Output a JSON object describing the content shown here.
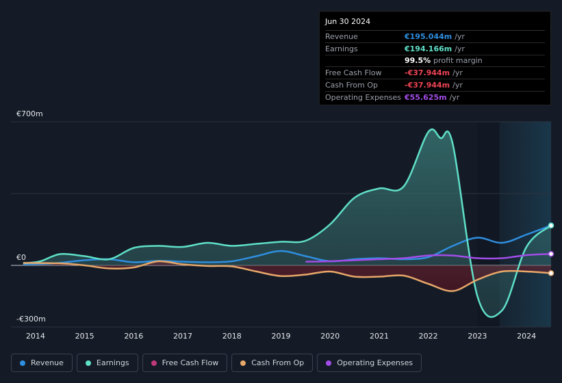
{
  "tooltip": {
    "date": "Jun 30 2024",
    "rows": [
      {
        "label": "Revenue",
        "value": "€195.044m",
        "unit": "/yr",
        "color": "#2f8fe0"
      },
      {
        "label": "Earnings",
        "value": "€194.166m",
        "unit": "/yr",
        "color": "#5fe0c8"
      },
      {
        "label": "",
        "value": "99.5%",
        "unit": "profit margin",
        "color": "#ffffff"
      },
      {
        "label": "Free Cash Flow",
        "value": "-€37.944m",
        "unit": "/yr",
        "color": "#ee4455"
      },
      {
        "label": "Cash From Op",
        "value": "-€37.944m",
        "unit": "/yr",
        "color": "#ee4455"
      },
      {
        "label": "Operating Expenses",
        "value": "€55.625m",
        "unit": "/yr",
        "color": "#a24de8"
      }
    ]
  },
  "legend": [
    {
      "label": "Revenue",
      "color": "#2f8fe0"
    },
    {
      "label": "Earnings",
      "color": "#5fe0c8"
    },
    {
      "label": "Free Cash Flow",
      "color": "#c0397a"
    },
    {
      "label": "Cash From Op",
      "color": "#e8a86a"
    },
    {
      "label": "Operating Expenses",
      "color": "#a24de8"
    }
  ],
  "chart_data": {
    "type": "area",
    "title": "",
    "xlabel": "",
    "ylabel": "",
    "ylim": [
      -300,
      700
    ],
    "y_tick_labels": [
      "€700m",
      "€0",
      "-€300m"
    ],
    "x_ticks": [
      "2014",
      "2015",
      "2016",
      "2017",
      "2018",
      "2019",
      "2020",
      "2021",
      "2022",
      "2023",
      "2024"
    ],
    "x_range": [
      2013.5,
      2024.5
    ],
    "series": [
      {
        "name": "Revenue",
        "color": "#2f8fe0",
        "x": [
          2013.75,
          2014.25,
          2014.5,
          2015.0,
          2015.5,
          2016.0,
          2016.5,
          2017.0,
          2017.5,
          2018.0,
          2018.5,
          2019.0,
          2019.5,
          2020.0,
          2020.5,
          2021.0,
          2021.5,
          2022.0,
          2022.5,
          2023.0,
          2023.5,
          2024.0,
          2024.5
        ],
        "values": [
          5,
          8,
          12,
          25,
          30,
          15,
          22,
          18,
          15,
          20,
          45,
          70,
          45,
          20,
          30,
          35,
          30,
          40,
          95,
          135,
          110,
          150,
          195
        ]
      },
      {
        "name": "Earnings",
        "color": "#5fe0c8",
        "x": [
          2013.75,
          2014.1,
          2014.5,
          2015.0,
          2015.5,
          2016.0,
          2016.5,
          2017.0,
          2017.5,
          2018.0,
          2018.5,
          2019.0,
          2019.5,
          2020.0,
          2020.5,
          2021.0,
          2021.5,
          2022.0,
          2022.25,
          2022.5,
          2023.0,
          2023.5,
          2024.0,
          2024.5
        ],
        "values": [
          10,
          20,
          55,
          45,
          30,
          85,
          95,
          90,
          110,
          95,
          105,
          115,
          120,
          200,
          330,
          375,
          385,
          650,
          620,
          590,
          -150,
          -220,
          90,
          194
        ]
      },
      {
        "name": "Cash From Op",
        "color": "#e8a86a",
        "x": [
          2013.75,
          2014.5,
          2015.0,
          2015.5,
          2016.0,
          2016.5,
          2017.0,
          2017.5,
          2018.0,
          2018.5,
          2019.0,
          2019.5,
          2020.0,
          2020.5,
          2021.0,
          2021.5,
          2022.0,
          2022.5,
          2023.0,
          2023.5,
          2024.0,
          2024.5
        ],
        "values": [
          12,
          10,
          0,
          -15,
          -10,
          20,
          5,
          -3,
          -5,
          -30,
          -52,
          -45,
          -30,
          -55,
          -55,
          -50,
          -90,
          -125,
          -70,
          -30,
          -30,
          -38
        ]
      },
      {
        "name": "Operating Expenses",
        "color": "#a24de8",
        "x": [
          2019.5,
          2020.0,
          2020.5,
          2021.0,
          2021.5,
          2022.0,
          2022.5,
          2023.0,
          2023.5,
          2024.0,
          2024.5
        ],
        "values": [
          18,
          20,
          25,
          30,
          35,
          48,
          48,
          35,
          35,
          50,
          56
        ]
      }
    ]
  }
}
